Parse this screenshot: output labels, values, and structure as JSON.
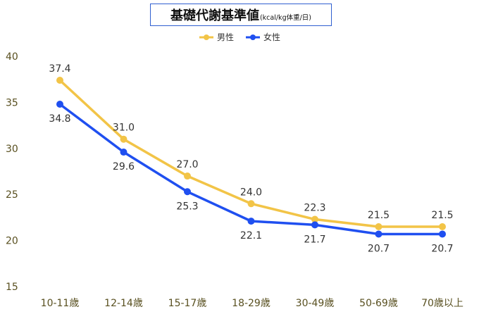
{
  "chart_data": {
    "type": "line",
    "title": "基礎代謝基準値",
    "title_unit": "(kcal/kg体重/日)",
    "categories": [
      "10-11歳",
      "12-14歳",
      "15-17歳",
      "18-29歳",
      "30-49歳",
      "50-69歳",
      "70歳以上"
    ],
    "series": [
      {
        "name": "男性",
        "color": "#f2c447",
        "values": [
          37.4,
          31.0,
          27.0,
          24.0,
          22.3,
          21.5,
          21.5
        ]
      },
      {
        "name": "女性",
        "color": "#1f4ff0",
        "values": [
          34.8,
          29.6,
          25.3,
          22.1,
          21.7,
          20.7,
          20.7
        ]
      }
    ],
    "data_labels": [
      [
        "37.4",
        "31.0",
        "27.0",
        "24.0",
        "22.3",
        "21.5",
        "21.5"
      ],
      [
        "34.8",
        "29.6",
        "25.3",
        "22.1",
        "21.7",
        "20.7",
        "20.7"
      ]
    ],
    "ylim": [
      15,
      40
    ],
    "yticks": [
      15,
      20,
      25,
      30,
      35,
      40
    ],
    "grid": false,
    "legend": "top-center"
  }
}
